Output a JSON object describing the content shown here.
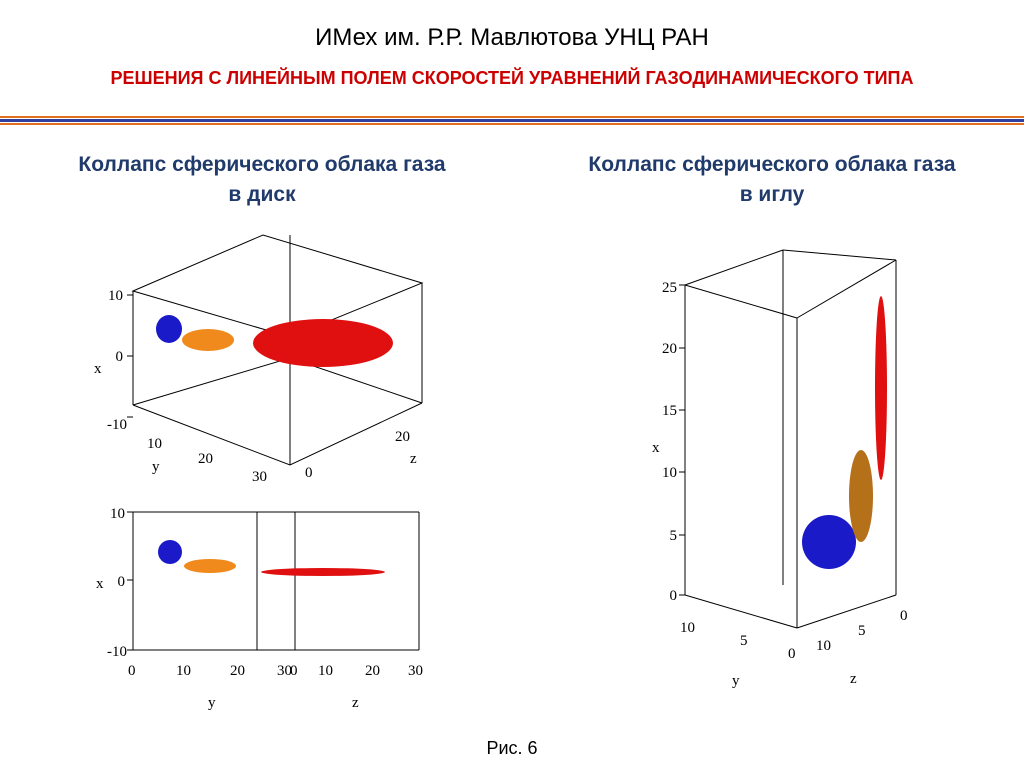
{
  "header": {
    "title": "ИМех им. Р.Р. Мавлютова УНЦ РАН",
    "subtitle": "РЕШЕНИЯ С ЛИНЕЙНЫМ ПОЛЕМ СКОРОСТЕЙ УРАВНЕНИЙ ГАЗОДИНАМИЧЕСКОГО ТИПА"
  },
  "colors": {
    "title_blue": "#1f3a6b",
    "subtitle_red": "#cc0000",
    "divider_blue": "#2f3fa0",
    "divider_orange": "#e07020",
    "sphere_blue": "#1a1ac8",
    "ellipsoid_orange": "#f08a1c",
    "ellipsoid_red": "#e01010",
    "ellipsoid_brown": "#b5701a"
  },
  "panels": {
    "left_heading": {
      "line1": "Коллапс сферического облака газа",
      "line2": "в диск"
    },
    "right_heading": {
      "line1": "Коллапс сферического облака газа",
      "line2": "в иглу"
    }
  },
  "plot_disk_3d": {
    "x_label": "x",
    "y_label": "y",
    "z_label": "z",
    "x_ticks": [
      "10",
      "0",
      "-10"
    ],
    "y_ticks": [
      "10",
      "20",
      "30"
    ],
    "z_ticks": [
      "0",
      "20"
    ]
  },
  "plot_disk_side": {
    "x_label": "x",
    "y_label": "y",
    "z_label": "z",
    "x_ticks": [
      "10",
      "0",
      "-10"
    ],
    "y_ticks": [
      "0",
      "10",
      "20",
      "30"
    ],
    "z_ticks": [
      "0",
      "10",
      "20",
      "30"
    ]
  },
  "plot_needle_3d": {
    "x_label": "x",
    "y_label": "y",
    "z_label": "z",
    "x_ticks": [
      "25",
      "20",
      "15",
      "10",
      "5",
      "0"
    ],
    "y_ticks": [
      "10",
      "5",
      "0"
    ],
    "z_ticks": [
      "10",
      "5",
      "0"
    ]
  },
  "caption": "Рис. 6"
}
